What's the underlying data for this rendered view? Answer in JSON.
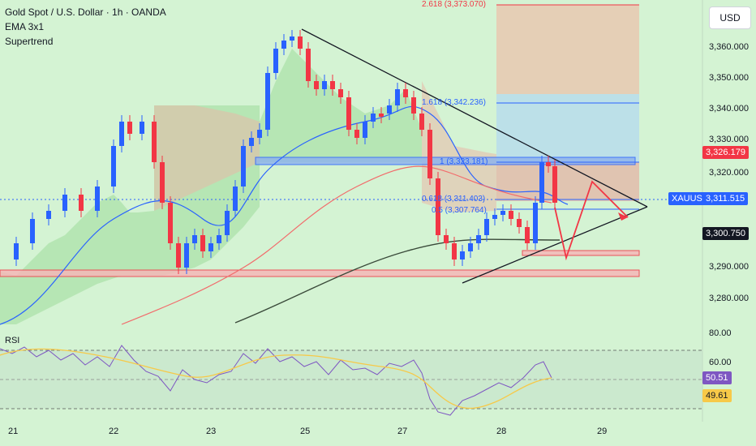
{
  "legend": {
    "symbol": "Gold Spot / U.S. Dollar · 1h · OANDA",
    "ema": "EMA 3x1",
    "supertrend": "Supertrend"
  },
  "currency": "USD",
  "price_axis": [
    "3,360.000",
    "3,350.000",
    "3,340.000",
    "3,330.000",
    "3,320.000",
    "3,290.000",
    "3,280.000"
  ],
  "rsi_axis": [
    "80.00",
    "60.00"
  ],
  "time_axis": [
    "21",
    "22",
    "23",
    "25",
    "27",
    "28",
    "29"
  ],
  "tags": {
    "resistance": "3,326.179",
    "symbol": "XAUUSD",
    "last": "3,311.515",
    "support": "3,300.750",
    "rsi": "50.51",
    "rsi_ma": "49.61"
  },
  "fib_labels": {
    "f2618": "2.618 (3,373.070)",
    "f1618": "1.618 (3,342.236)",
    "f1": "1 (3,323.181)",
    "f0618": "0.618 (3,311.403)",
    "f05": "0.5 (3,307.764)"
  },
  "rsi_title": "RSI",
  "colors": {
    "background": "#d4f3d3",
    "up": "#2962ff",
    "down": "#f23645",
    "last": "#2962ff",
    "resistance": "#f23645",
    "support": "#131722",
    "rsi": "#7e57c2",
    "rsi_ma": "#f7c948"
  }
}
